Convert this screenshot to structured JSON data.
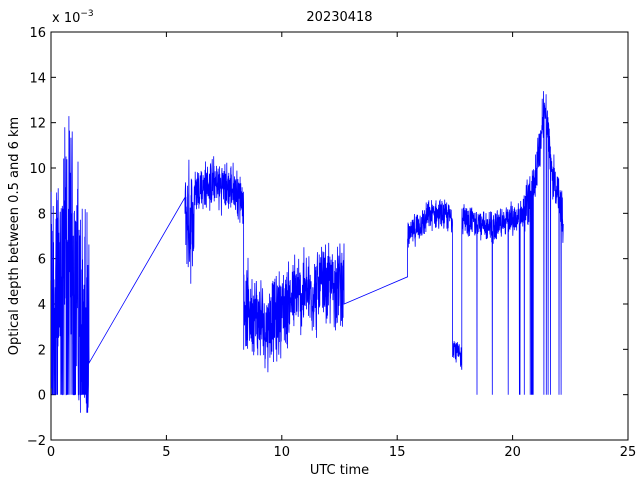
{
  "chart_data": {
    "type": "line",
    "title": "20230418",
    "xlabel": "UTC time",
    "ylabel": "Optical depth between 0.5 and 6 km",
    "y_multiplier_label": "x 10",
    "y_multiplier_exponent": "−3",
    "xlim": [
      0,
      25
    ],
    "ylim": [
      -2,
      16
    ],
    "x_ticks": [
      0,
      5,
      10,
      15,
      20,
      25
    ],
    "y_ticks": [
      -2,
      0,
      2,
      4,
      6,
      8,
      10,
      12,
      14,
      16
    ],
    "y_tick_labels": [
      "−2",
      "0",
      "2",
      "4",
      "6",
      "8",
      "10",
      "12",
      "14",
      "16"
    ],
    "grid": false,
    "line_color": "#0000ff",
    "note": "y values in units of 1e-3",
    "series": [
      {
        "segments": [
          {
            "x_start": 0.0,
            "x_end": 1.65,
            "noise": 4.2,
            "anchors": [
              [
                0.0,
                4.0
              ],
              [
                0.4,
                6.0
              ],
              [
                0.8,
                7.0
              ],
              [
                1.2,
                5.0
              ],
              [
                1.6,
                2.0
              ]
            ],
            "drop": 0.28
          },
          {
            "x_start": 1.65,
            "x_end": 5.8,
            "noise": 0.0,
            "anchors": [
              [
                1.65,
                1.4
              ],
              [
                5.8,
                8.7
              ]
            ],
            "drop": 0
          },
          {
            "x_start": 5.8,
            "x_end": 6.2,
            "noise": 2.0,
            "anchors": [
              [
                5.8,
                8.0
              ],
              [
                6.2,
                7.5
              ]
            ],
            "drop": 0
          },
          {
            "x_start": 6.2,
            "x_end": 8.35,
            "noise": 0.9,
            "anchors": [
              [
                6.2,
                9.0
              ],
              [
                7.0,
                9.3
              ],
              [
                8.0,
                9.0
              ],
              [
                8.35,
                8.5
              ]
            ],
            "drop": 0
          },
          {
            "x_start": 8.35,
            "x_end": 12.7,
            "noise": 1.5,
            "anchors": [
              [
                8.4,
                4.0
              ],
              [
                9.3,
                3.0
              ],
              [
                10.5,
                4.3
              ],
              [
                11.5,
                4.6
              ],
              [
                12.6,
                5.0
              ]
            ],
            "drop": 0
          },
          {
            "x_start": 12.7,
            "x_end": 15.45,
            "noise": 0.0,
            "anchors": [
              [
                12.7,
                4.0
              ],
              [
                15.45,
                5.2
              ]
            ],
            "drop": 0
          },
          {
            "x_start": 15.45,
            "x_end": 17.4,
            "noise": 0.55,
            "anchors": [
              [
                15.5,
                7.0
              ],
              [
                16.5,
                8.0
              ],
              [
                17.4,
                7.8
              ]
            ],
            "drop": 0
          },
          {
            "x_start": 17.4,
            "x_end": 17.8,
            "noise": 0.5,
            "anchors": [
              [
                17.45,
                2.2
              ],
              [
                17.8,
                1.5
              ]
            ],
            "drop": 0
          },
          {
            "x_start": 17.8,
            "x_end": 20.5,
            "noise": 0.55,
            "anchors": [
              [
                17.8,
                7.8
              ],
              [
                19.0,
                7.3
              ],
              [
                20.0,
                7.8
              ],
              [
                20.5,
                8.0
              ]
            ],
            "drop": 0.02
          },
          {
            "x_start": 20.5,
            "x_end": 22.2,
            "noise": 0.9,
            "anchors": [
              [
                20.5,
                8.0
              ],
              [
                21.0,
                9.5
              ],
              [
                21.4,
                13.0
              ],
              [
                21.7,
                10.0
              ],
              [
                22.2,
                7.5
              ]
            ],
            "drop": 0.04
          }
        ]
      }
    ]
  }
}
